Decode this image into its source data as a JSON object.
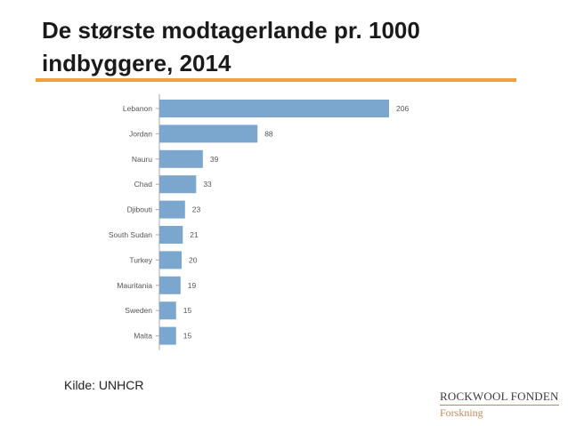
{
  "slide": {
    "title": "De største modtagerlande pr. 1000 indbyggere, 2014",
    "source": "Kilde: UNHCR",
    "logo": {
      "name": "ROCKWOOL FONDEN",
      "subtitle": "Forskning"
    },
    "accent_color": "#f0a040"
  },
  "chart_data": {
    "type": "bar",
    "orientation": "horizontal",
    "categories": [
      "Lebanon",
      "Jordan",
      "Nauru",
      "Chad",
      "Djibouti",
      "South Sudan",
      "Turkey",
      "Mauritania",
      "Sweden",
      "Malta"
    ],
    "values": [
      206,
      88,
      39,
      33,
      23,
      21,
      20,
      19,
      15,
      15
    ],
    "data_labels": true,
    "grid": false,
    "bar_color": "#7ba7cf",
    "title": "",
    "xlabel": "",
    "ylabel": ""
  }
}
